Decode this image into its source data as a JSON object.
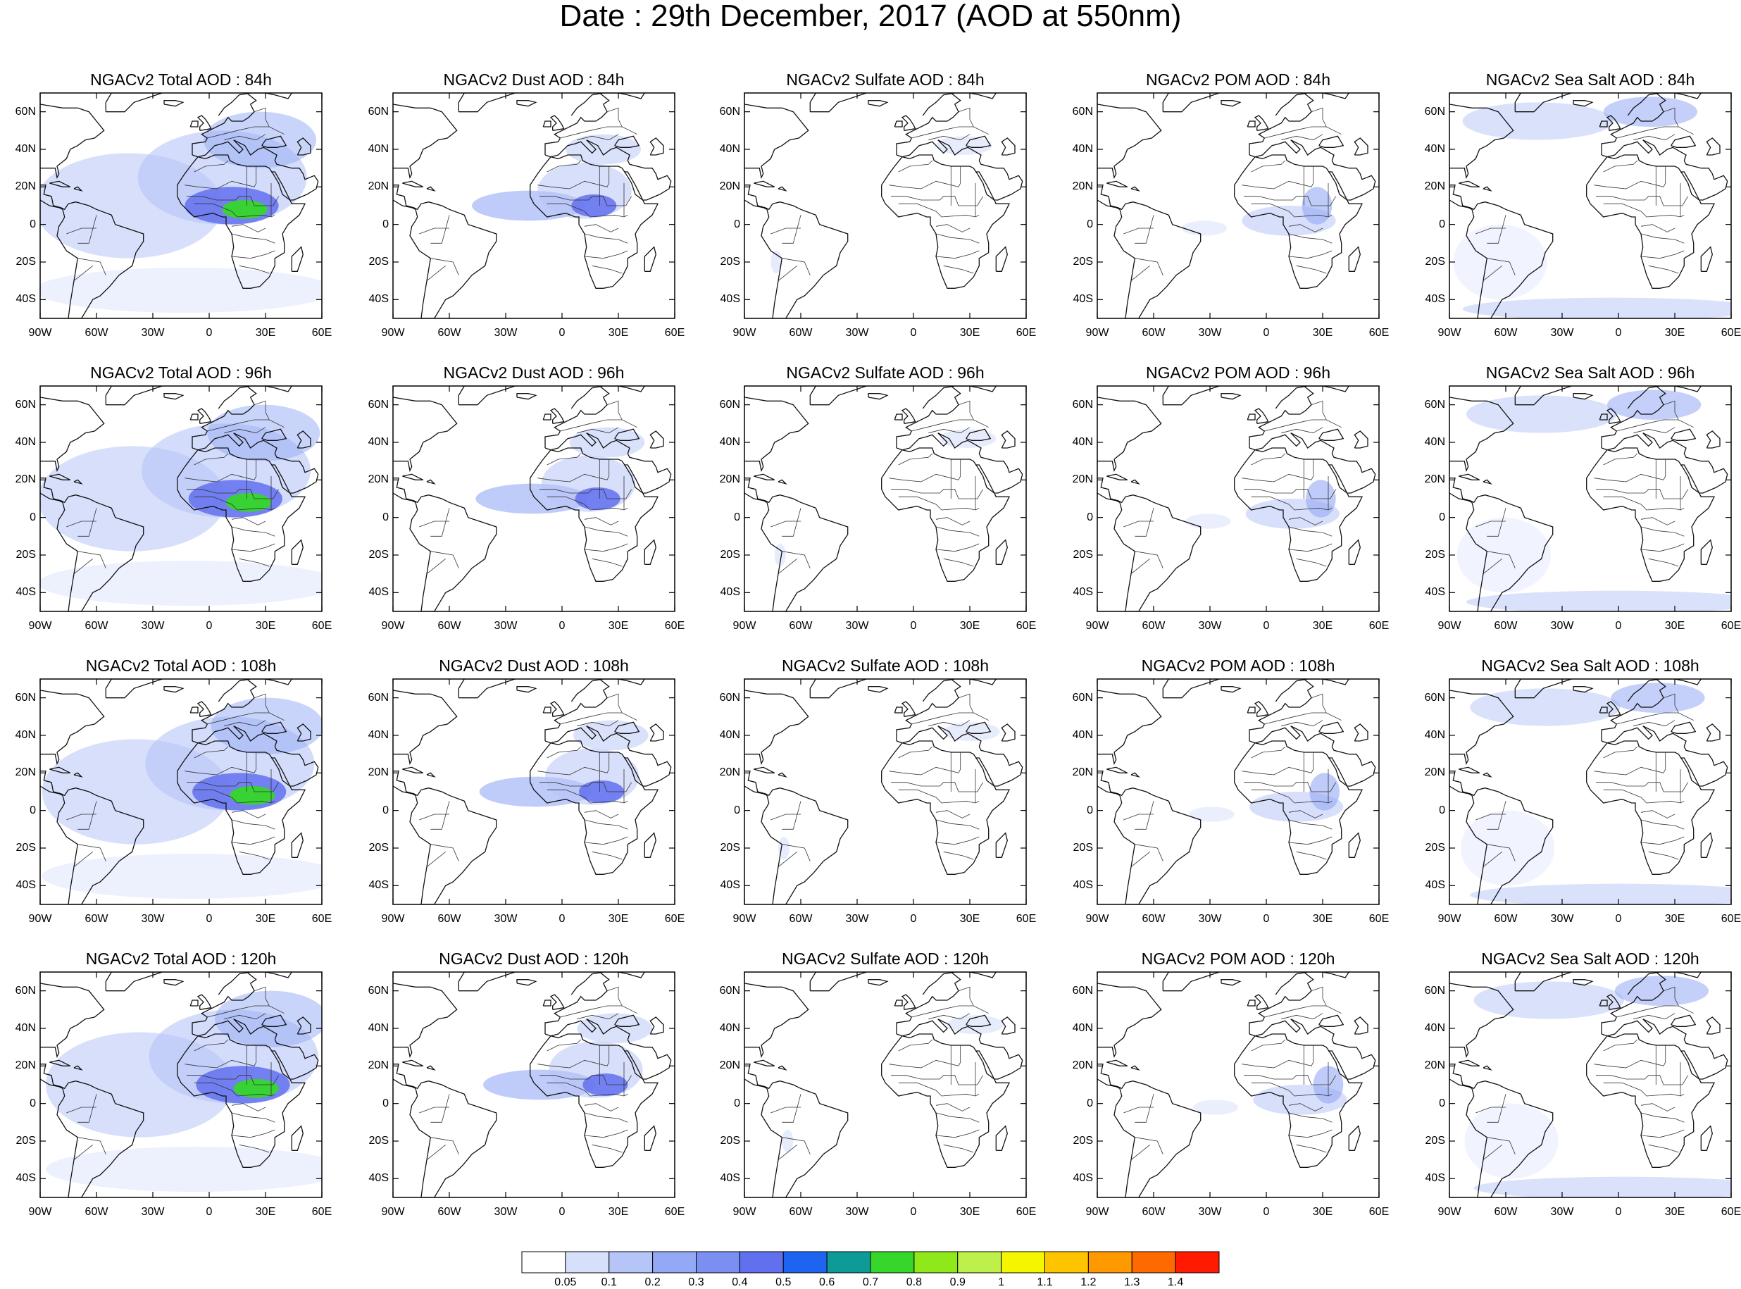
{
  "title": "Date : 29th December, 2017 (AOD at 550nm)",
  "columns": [
    {
      "key": "total",
      "color": "#6f83f2"
    },
    {
      "key": "dust",
      "color": "#7c90f2"
    },
    {
      "key": "sulfate",
      "color": "#c7d3fa"
    },
    {
      "key": "pom",
      "color": "#a9baf6"
    },
    {
      "key": "seasalt",
      "color": "#b3c3f8"
    }
  ],
  "panel_titles": [
    [
      "NGACv2 Total AOD : 84h",
      "NGACv2 Dust AOD : 84h",
      "NGACv2 Sulfate AOD : 84h",
      "NGACv2 POM AOD : 84h",
      "NGACv2 Sea Salt AOD : 84h"
    ],
    [
      "NGACv2 Total AOD : 96h",
      "NGACv2 Dust AOD : 96h",
      "NGACv2 Sulfate AOD : 96h",
      "NGACv2 POM AOD : 96h",
      "NGACv2 Sea Salt AOD : 96h"
    ],
    [
      "NGACv2 Total AOD : 108h",
      "NGACv2 Dust AOD : 108h",
      "NGACv2 Sulfate AOD : 108h",
      "NGACv2 POM AOD : 108h",
      "NGACv2 Sea Salt AOD : 108h"
    ],
    [
      "NGACv2 Total AOD : 120h",
      "NGACv2 Dust AOD : 120h",
      "NGACv2 Sulfate AOD : 120h",
      "NGACv2 POM AOD : 120h",
      "NGACv2 Sea Salt  AOD : 120h"
    ]
  ],
  "lat_labels": [
    "60N",
    "40N",
    "20N",
    "0",
    "20S",
    "40S"
  ],
  "lat_values": [
    60,
    40,
    20,
    0,
    -20,
    -40
  ],
  "lon_labels": [
    "90W",
    "60W",
    "30W",
    "0",
    "30E",
    "60E"
  ],
  "lon_values": [
    -90,
    -60,
    -30,
    0,
    30,
    60
  ],
  "lat_range": [
    -50,
    70
  ],
  "lon_range": [
    -90,
    60
  ],
  "colorbar": {
    "levels": [
      "0.05",
      "0.1",
      "0.2",
      "0.3",
      "0.4",
      "0.5",
      "0.6",
      "0.7",
      "0.8",
      "0.9",
      "1",
      "1.1",
      "1.2",
      "1.3",
      "1.4"
    ],
    "colors": [
      "#ffffff",
      "#d7e0fb",
      "#b6c5f8",
      "#94a9f5",
      "#7b8ff2",
      "#6170ee",
      "#1f64f0",
      "#0e9a96",
      "#36d62a",
      "#8fe81a",
      "#bdf04a",
      "#f5f500",
      "#ffc400",
      "#ff9900",
      "#ff6a00",
      "#ff1a00"
    ]
  }
}
